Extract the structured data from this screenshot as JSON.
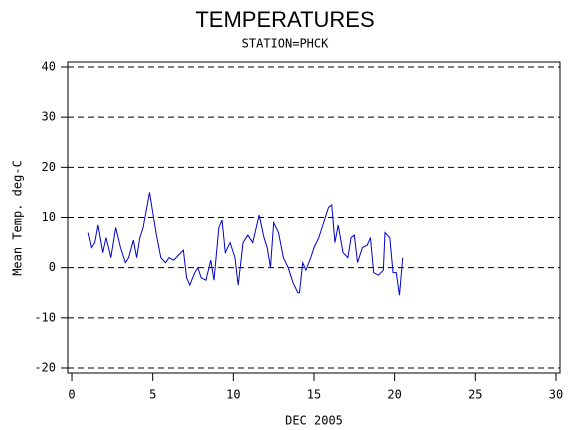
{
  "chart_data": {
    "type": "line",
    "title": "TEMPERATURES",
    "subtitle": "STATION=PHCK",
    "x_label": "DEC 2005",
    "y_label": "Mean Temp. deg-C",
    "xlim": [
      -0.25,
      30.25
    ],
    "ylim": [
      -21,
      41
    ],
    "xticks": [
      0,
      5,
      10,
      15,
      20,
      25,
      30
    ],
    "yticks": [
      -20,
      -10,
      0,
      10,
      20,
      30,
      40
    ],
    "grid": true,
    "series": [
      {
        "name": "Mean Temp",
        "color": "#0000cc",
        "x": [
          1.0,
          1.2,
          1.4,
          1.6,
          1.9,
          2.1,
          2.4,
          2.7,
          3.0,
          3.3,
          3.5,
          3.8,
          4.0,
          4.2,
          4.4,
          4.8,
          5.2,
          5.5,
          5.8,
          6.0,
          6.3,
          6.6,
          6.9,
          7.1,
          7.3,
          7.6,
          7.8,
          8.0,
          8.3,
          8.6,
          8.8,
          9.1,
          9.3,
          9.5,
          9.8,
          10.1,
          10.3,
          10.6,
          10.9,
          11.2,
          11.6,
          11.9,
          12.1,
          12.3,
          12.5,
          12.8,
          13.1,
          13.4,
          13.7,
          14.0,
          14.1,
          14.3,
          14.5,
          14.8,
          15.0,
          15.3,
          15.6,
          15.9,
          16.1,
          16.3,
          16.5,
          16.8,
          17.1,
          17.3,
          17.5,
          17.7,
          18.0,
          18.3,
          18.5,
          18.7,
          19.0,
          19.3,
          19.4,
          19.7,
          19.9,
          20.1,
          20.3,
          20.5
        ],
        "values": [
          7,
          4,
          5,
          8.5,
          3,
          6,
          2,
          8,
          4,
          1,
          2,
          5.5,
          2,
          6,
          8,
          15,
          7,
          2,
          1,
          2,
          1.5,
          2.5,
          3.5,
          -2,
          -3.5,
          -1,
          0,
          -2,
          -2.5,
          1.5,
          -2.5,
          8,
          9.5,
          3,
          5,
          2,
          -3.5,
          5,
          6.5,
          5,
          10.5,
          6,
          4,
          0,
          9,
          7,
          2,
          0,
          -3,
          -5,
          -5,
          1,
          -0.5,
          2,
          4,
          6,
          9,
          12,
          12.5,
          5,
          8.5,
          3,
          2,
          6,
          6.5,
          1,
          4,
          4.5,
          6,
          -1,
          -1.5,
          -0.5,
          7,
          6,
          -1,
          -1,
          -5.5,
          2
        ]
      }
    ]
  }
}
